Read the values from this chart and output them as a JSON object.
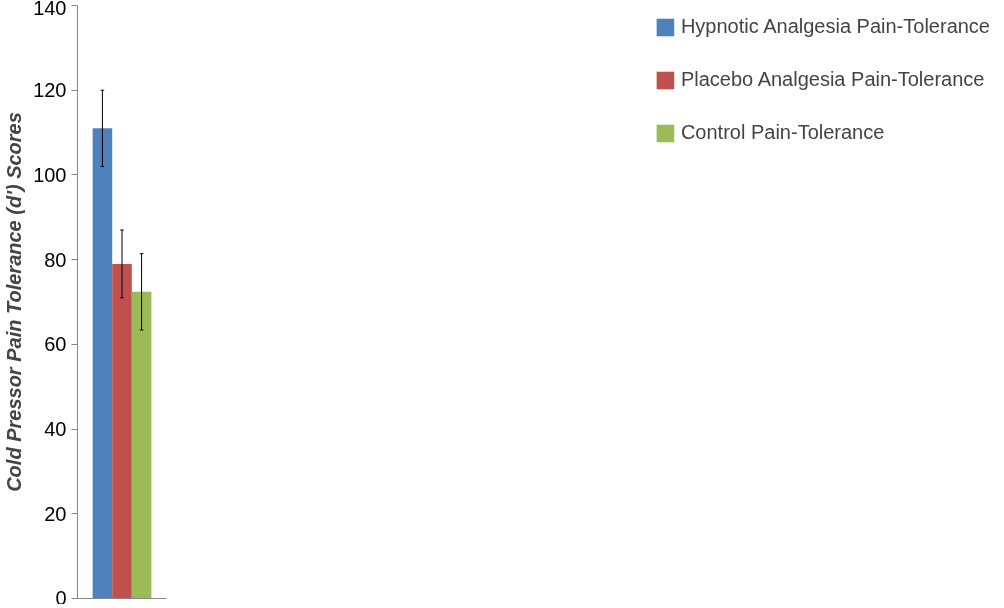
{
  "chart_data": {
    "type": "bar",
    "ylabel": "Cold Pressor Pain Tolerance (d') Scores",
    "categories": [
      null
    ],
    "series": [
      {
        "name": "Hypnotic Analgesia Pain-Tolerance",
        "color": "#4f81bd",
        "values": [
          111
        ],
        "errors": [
          9
        ]
      },
      {
        "name": "Placebo Analgesia Pain-Tolerance",
        "color": "#c0504d",
        "values": [
          79
        ],
        "errors": [
          8
        ]
      },
      {
        "name": "Control Pain-Tolerance",
        "color": "#9bbb59",
        "values": [
          72.4
        ],
        "errors": [
          9
        ]
      }
    ],
    "ylim": [
      0,
      140
    ],
    "yticks": [
      0,
      20,
      40,
      60,
      80,
      100,
      120,
      140
    ],
    "grid": false,
    "legend": "right"
  }
}
